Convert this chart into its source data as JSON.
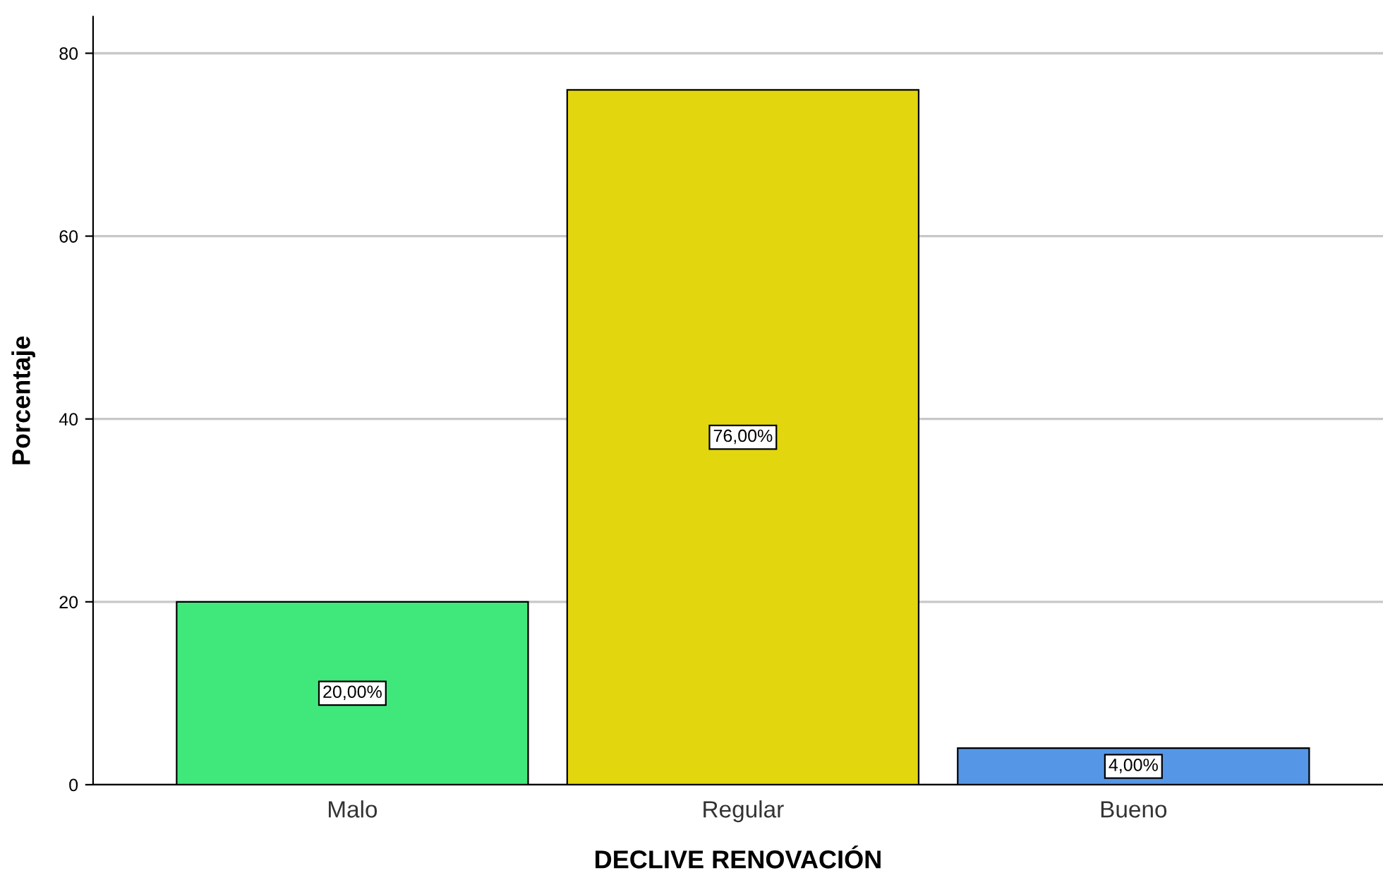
{
  "chart_data": {
    "type": "bar",
    "xlabel": "DECLIVE RENOVACIÓN",
    "ylabel": "Porcentaje",
    "categories": [
      "Malo",
      "Regular",
      "Bueno"
    ],
    "values": [
      20,
      76,
      4
    ],
    "colors": [
      "#40e87c",
      "#e2d70e",
      "#5596e6"
    ],
    "value_labels": [
      "20,00%",
      "76,00%",
      "4,00%"
    ],
    "ylim": [
      0,
      84
    ],
    "yticks": [
      0,
      20,
      40,
      60,
      80
    ],
    "grid": "y",
    "legend": false
  }
}
